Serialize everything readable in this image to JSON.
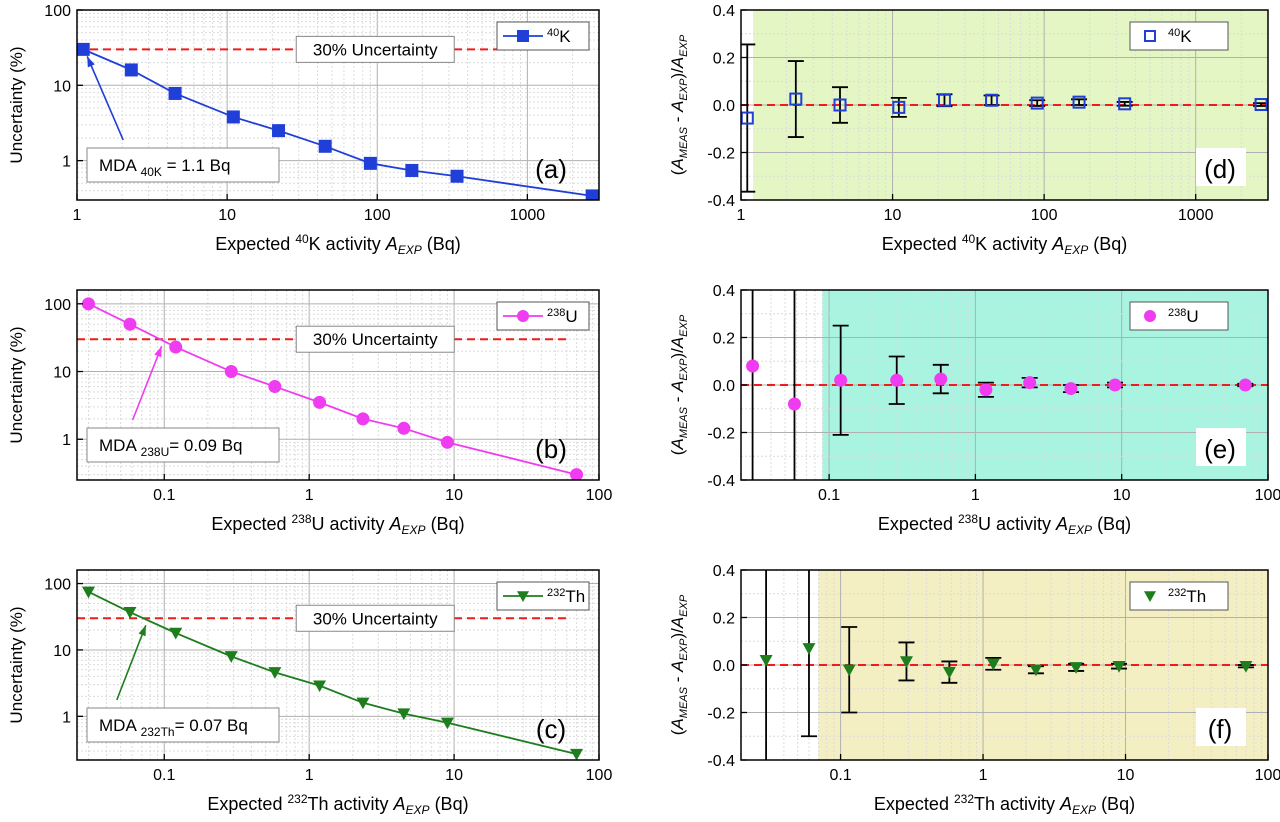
{
  "colors": {
    "k40": "#1f3fd8",
    "u238": "#f03cf0",
    "th232": "#1e7e1e",
    "threshold": "#ee1c1c",
    "zone_d": "#e4f6c4",
    "zone_e": "#a9f3e1",
    "zone_f": "#f3efc2"
  },
  "chart_data": [
    {
      "id": "a",
      "type": "line",
      "panel_label": "(a)",
      "ylabel": "Uncertainty (%)",
      "xlabel": {
        "prefix": "Expected ",
        "sup": "40",
        "el": "K activity ",
        "var": "A",
        "sub": "EXP",
        "unit": " (Bq)"
      },
      "xscale": "log",
      "yscale": "log",
      "xlim": [
        1,
        3000
      ],
      "ylim": [
        0.3,
        100
      ],
      "x_ticks": [
        {
          "v": 1,
          "label": "1"
        },
        {
          "v": 10,
          "label": "10"
        },
        {
          "v": 100,
          "label": "100"
        },
        {
          "v": 1000,
          "label": "1000"
        }
      ],
      "y_ticks": [
        {
          "v": 1,
          "label": "1"
        },
        {
          "v": 10,
          "label": "10"
        },
        {
          "v": 100,
          "label": "100"
        }
      ],
      "grid": true,
      "marker": "square",
      "color_key": "k40",
      "series": [
        {
          "legend": {
            "sup": "40",
            "el": "K"
          },
          "x": [
            1.1,
            2.3,
            4.5,
            11,
            22,
            45,
            90,
            170,
            340,
            2700
          ],
          "y": [
            30,
            16,
            7.8,
            3.8,
            2.5,
            1.55,
            0.92,
            0.74,
            0.62,
            0.34
          ]
        }
      ],
      "legend_position": "top-right",
      "threshold": {
        "y": 30,
        "label": "30% Uncertainty"
      },
      "annotation": {
        "text_pre": "MDA ",
        "sub": "40K",
        "text_post": "  = 1.1 Bq",
        "x": 1.1,
        "y": 30
      }
    },
    {
      "id": "b",
      "type": "line",
      "panel_label": "(b)",
      "ylabel": "Uncertainty (%)",
      "xlabel": {
        "prefix": "Expected ",
        "sup": "238",
        "el": "U activity ",
        "var": "A",
        "sub": "EXP",
        "unit": " (Bq)"
      },
      "xscale": "log",
      "yscale": "log",
      "xlim": [
        0.025,
        100
      ],
      "ylim": [
        0.25,
        160
      ],
      "x_ticks": [
        {
          "v": 0.1,
          "label": "0.1"
        },
        {
          "v": 1,
          "label": "1"
        },
        {
          "v": 10,
          "label": "10"
        },
        {
          "v": 100,
          "label": "100"
        }
      ],
      "y_ticks": [
        {
          "v": 1,
          "label": "1"
        },
        {
          "v": 10,
          "label": "10"
        },
        {
          "v": 100,
          "label": "100"
        }
      ],
      "grid": true,
      "marker": "circle",
      "color_key": "u238",
      "series": [
        {
          "legend": {
            "sup": "238",
            "el": "U"
          },
          "x": [
            0.03,
            0.058,
            0.12,
            0.29,
            0.58,
            1.18,
            2.35,
            4.5,
            9,
            70
          ],
          "y": [
            100,
            50,
            23,
            10,
            6,
            3.5,
            2,
            1.45,
            0.9,
            0.3
          ]
        }
      ],
      "legend_position": "top-right",
      "threshold": {
        "y": 30,
        "label": "30% Uncertainty"
      },
      "annotation": {
        "text_pre": "MDA ",
        "sub": "238U",
        "text_post": "= 0.09 Bq",
        "x": 0.09,
        "y": 30
      }
    },
    {
      "id": "c",
      "type": "line",
      "panel_label": "(c)",
      "ylabel": "Uncertainty (%)",
      "xlabel": {
        "prefix": "Expected ",
        "sup": "232",
        "el": "Th activity ",
        "var": "A",
        "sub": "EXP",
        "unit": " (Bq)"
      },
      "xscale": "log",
      "yscale": "log",
      "xlim": [
        0.025,
        100
      ],
      "ylim": [
        0.22,
        160
      ],
      "x_ticks": [
        {
          "v": 0.1,
          "label": "0.1"
        },
        {
          "v": 1,
          "label": "1"
        },
        {
          "v": 10,
          "label": "10"
        },
        {
          "v": 100,
          "label": "100"
        }
      ],
      "y_ticks": [
        {
          "v": 1,
          "label": "1"
        },
        {
          "v": 10,
          "label": "10"
        },
        {
          "v": 100,
          "label": "100"
        }
      ],
      "grid": true,
      "marker": "triangle-down",
      "color_key": "th232",
      "series": [
        {
          "legend": {
            "sup": "232",
            "el": "Th"
          },
          "x": [
            0.03,
            0.058,
            0.12,
            0.29,
            0.58,
            1.18,
            2.35,
            4.5,
            9,
            70
          ],
          "y": [
            75,
            37,
            18,
            8,
            4.6,
            2.9,
            1.6,
            1.1,
            0.8,
            0.27
          ]
        }
      ],
      "legend_position": "top-right",
      "threshold": {
        "y": 30,
        "label": "30% Uncertainty"
      },
      "annotation": {
        "text_pre": "MDA ",
        "sub": "232Th",
        "text_post": "= 0.07 Bq",
        "x": 0.07,
        "y": 30
      }
    },
    {
      "id": "d",
      "type": "scatter",
      "panel_label": "(d)",
      "ylabel": {
        "pre": "(",
        "v1": "A",
        "s1": "MEAS",
        "mid": " - ",
        "v2": "A",
        "s2": "EXP",
        "post": ")/",
        "v3": "A",
        "s3": "EXP"
      },
      "xlabel": {
        "prefix": "Expected ",
        "sup": "40",
        "el": "K activity ",
        "var": "A",
        "sub": "EXP",
        "unit": " (Bq)"
      },
      "xscale": "log",
      "yscale": "linear",
      "xlim": [
        1,
        3000
      ],
      "ylim": [
        -0.4,
        0.4
      ],
      "x_ticks": [
        {
          "v": 1,
          "label": "1"
        },
        {
          "v": 10,
          "label": "10"
        },
        {
          "v": 100,
          "label": "100"
        },
        {
          "v": 1000,
          "label": "1000"
        }
      ],
      "y_ticks": [
        {
          "v": -0.4,
          "label": "-0.4"
        },
        {
          "v": -0.2,
          "label": "-0.2"
        },
        {
          "v": 0,
          "label": "0.0"
        },
        {
          "v": 0.2,
          "label": "0.2"
        },
        {
          "v": 0.4,
          "label": "0.4"
        }
      ],
      "grid": true,
      "marker": "square-open",
      "color_key": "k40",
      "zone_color_key": "zone_d",
      "zone_x_from": 1.2,
      "series": [
        {
          "legend": {
            "sup": "40",
            "el": "K"
          },
          "x": [
            1.1,
            2.3,
            4.5,
            11,
            22,
            45,
            90,
            170,
            340,
            2700
          ],
          "y": [
            -0.055,
            0.025,
            0.0,
            -0.01,
            0.02,
            0.02,
            0.008,
            0.012,
            0.005,
            0.002
          ],
          "err": [
            0.31,
            0.16,
            0.075,
            0.04,
            0.025,
            0.02,
            0.012,
            0.012,
            0.008,
            0.006
          ]
        }
      ],
      "legend_position": "top-right",
      "reference_line": {
        "y": 0
      }
    },
    {
      "id": "e",
      "type": "scatter",
      "panel_label": "(e)",
      "ylabel": {
        "pre": "(",
        "v1": "A",
        "s1": "MEAS",
        "mid": " - ",
        "v2": "A",
        "s2": "EXP",
        "post": ")/",
        "v3": "A",
        "s3": "EXP"
      },
      "xlabel": {
        "prefix": "Expected ",
        "sup": "238",
        "el": "U activity ",
        "var": "A",
        "sub": "EXP",
        "unit": " (Bq)"
      },
      "xscale": "log",
      "yscale": "linear",
      "xlim": [
        0.025,
        100
      ],
      "ylim": [
        -0.4,
        0.4
      ],
      "x_ticks": [
        {
          "v": 0.1,
          "label": "0.1"
        },
        {
          "v": 1,
          "label": "1"
        },
        {
          "v": 10,
          "label": "10"
        },
        {
          "v": 100,
          "label": "100"
        }
      ],
      "y_ticks": [
        {
          "v": -0.4,
          "label": "-0.4"
        },
        {
          "v": -0.2,
          "label": "-0.2"
        },
        {
          "v": 0,
          "label": "0.0"
        },
        {
          "v": 0.2,
          "label": "0.2"
        },
        {
          "v": 0.4,
          "label": "0.4"
        }
      ],
      "grid": true,
      "marker": "circle",
      "color_key": "u238",
      "zone_color_key": "zone_e",
      "zone_x_from": 0.09,
      "series": [
        {
          "legend": {
            "sup": "238",
            "el": "U"
          },
          "x": [
            0.03,
            0.058,
            0.12,
            0.29,
            0.58,
            1.18,
            2.35,
            4.5,
            9,
            70
          ],
          "y": [
            0.08,
            -0.08,
            0.02,
            0.02,
            0.025,
            -0.02,
            0.01,
            -0.015,
            0.0,
            0.0
          ],
          "err": [
            0.5,
            0.5,
            0.23,
            0.1,
            0.06,
            0.03,
            0.02,
            0.015,
            0.01,
            0.005
          ]
        }
      ],
      "legend_position": "top-right",
      "reference_line": {
        "y": 0
      }
    },
    {
      "id": "f",
      "type": "scatter",
      "panel_label": "(f)",
      "ylabel": {
        "pre": "(",
        "v1": "A",
        "s1": "MEAS",
        "mid": " - ",
        "v2": "A",
        "s2": "EXP",
        "post": ")/",
        "v3": "A",
        "s3": "EXP"
      },
      "xlabel": {
        "prefix": "Expected ",
        "sup": "232",
        "el": "Th activity ",
        "var": "A",
        "sub": "EXP",
        "unit": " (Bq)"
      },
      "xscale": "log",
      "yscale": "linear",
      "xlim": [
        0.02,
        100
      ],
      "ylim": [
        -0.4,
        0.4
      ],
      "x_ticks": [
        {
          "v": 0.1,
          "label": "0.1"
        },
        {
          "v": 1,
          "label": "1"
        },
        {
          "v": 10,
          "label": "10"
        },
        {
          "v": 100,
          "label": "100"
        }
      ],
      "y_ticks": [
        {
          "v": -0.4,
          "label": "-0.4"
        },
        {
          "v": -0.2,
          "label": "-0.2"
        },
        {
          "v": 0,
          "label": "0.0"
        },
        {
          "v": 0.2,
          "label": "0.2"
        },
        {
          "v": 0.4,
          "label": "0.4"
        }
      ],
      "grid": true,
      "marker": "triangle-down",
      "color_key": "th232",
      "zone_color_key": "zone_f",
      "zone_x_from": 0.07,
      "series": [
        {
          "legend": {
            "sup": "232",
            "el": "Th"
          },
          "x": [
            0.03,
            0.06,
            0.115,
            0.29,
            0.58,
            1.18,
            2.35,
            4.5,
            9,
            70
          ],
          "y": [
            0.02,
            0.07,
            -0.02,
            0.015,
            -0.03,
            0.005,
            -0.02,
            -0.01,
            -0.005,
            -0.005
          ],
          "err": [
            0.5,
            0.37,
            0.18,
            0.08,
            0.045,
            0.025,
            0.015,
            0.015,
            0.01,
            0.005
          ]
        }
      ],
      "legend_position": "top-right",
      "reference_line": {
        "y": 0
      }
    }
  ]
}
